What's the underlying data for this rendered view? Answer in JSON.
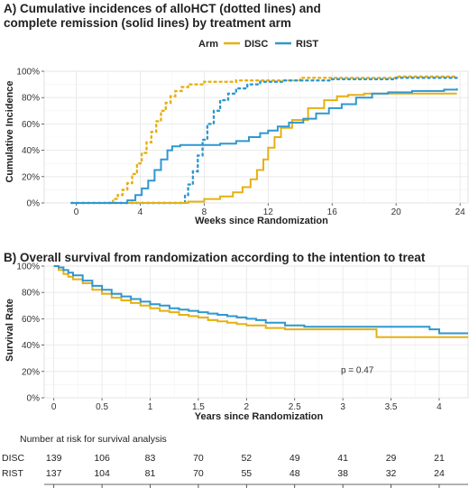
{
  "colors": {
    "DISC": "#E6B012",
    "RIST": "#2F97D0",
    "text": "#222222"
  },
  "chart_data": [
    {
      "type": "line",
      "title": "A) Cumulative incidences of alloHCT (dotted lines) and",
      "title_line2": "complete remission (solid lines) by treatment arm",
      "xlabel": "Weeks since Randomization",
      "ylabel": "Cumulative Incidence",
      "xlim": [
        -2,
        24.5
      ],
      "ylim": [
        0,
        100
      ],
      "xticks": [
        "0",
        "4",
        "8",
        "12",
        "16",
        "20",
        "24"
      ],
      "xtick_values": [
        0,
        4,
        8,
        12,
        16,
        20,
        24
      ],
      "yticks": [
        "0%",
        "20%",
        "40%",
        "60%",
        "80%",
        "100%"
      ],
      "ytick_values": [
        0,
        20,
        40,
        60,
        80,
        100
      ],
      "legend": {
        "title": "Arm",
        "entries": [
          "DISC",
          "RIST"
        ],
        "position": "top"
      },
      "grid": true,
      "series": [
        {
          "name": "DISC",
          "style": "dotted",
          "measure": "alloHCT",
          "points": [
            [
              2,
              0
            ],
            [
              2.3,
              3
            ],
            [
              2.6,
              6
            ],
            [
              2.9,
              10
            ],
            [
              3.2,
              15
            ],
            [
              3.5,
              22
            ],
            [
              3.8,
              30
            ],
            [
              4.1,
              38
            ],
            [
              4.4,
              46
            ],
            [
              4.7,
              54
            ],
            [
              5.0,
              62
            ],
            [
              5.3,
              70
            ],
            [
              5.6,
              76
            ],
            [
              5.9,
              81
            ],
            [
              6.2,
              85
            ],
            [
              6.6,
              88
            ],
            [
              7.0,
              90
            ],
            [
              8,
              92
            ],
            [
              10,
              93
            ],
            [
              14,
              95
            ],
            [
              20,
              96
            ],
            [
              23.8,
              96
            ]
          ]
        },
        {
          "name": "RIST",
          "style": "dotted",
          "measure": "alloHCT",
          "points": [
            [
              -0.3,
              0
            ],
            [
              6.5,
              0
            ],
            [
              6.8,
              6
            ],
            [
              7.0,
              14
            ],
            [
              7.3,
              24
            ],
            [
              7.6,
              36
            ],
            [
              7.9,
              48
            ],
            [
              8.2,
              60
            ],
            [
              8.6,
              70
            ],
            [
              9.0,
              78
            ],
            [
              9.5,
              83
            ],
            [
              10,
              87
            ],
            [
              10.7,
              90
            ],
            [
              11.5,
              92
            ],
            [
              13,
              93
            ],
            [
              16,
              94
            ],
            [
              20,
              95
            ],
            [
              23.8,
              95
            ]
          ]
        },
        {
          "name": "DISC",
          "style": "solid",
          "measure": "complete remission",
          "points": [
            [
              -0.3,
              0
            ],
            [
              5.5,
              0
            ],
            [
              7,
              1
            ],
            [
              8,
              3
            ],
            [
              9,
              5
            ],
            [
              9.8,
              8
            ],
            [
              10.4,
              12
            ],
            [
              10.9,
              18
            ],
            [
              11.3,
              25
            ],
            [
              11.7,
              33
            ],
            [
              12.0,
              42
            ],
            [
              12.4,
              50
            ],
            [
              12.8,
              57
            ],
            [
              13.5,
              63
            ],
            [
              14.5,
              72
            ],
            [
              15.5,
              78
            ],
            [
              16.3,
              81
            ],
            [
              17,
              82
            ],
            [
              18,
              83
            ],
            [
              23.8,
              83
            ]
          ]
        },
        {
          "name": "RIST",
          "style": "solid",
          "measure": "complete remission",
          "points": [
            [
              -0.3,
              0
            ],
            [
              2.5,
              0
            ],
            [
              3.2,
              2
            ],
            [
              3.7,
              6
            ],
            [
              4.1,
              11
            ],
            [
              4.5,
              17
            ],
            [
              4.9,
              25
            ],
            [
              5.3,
              33
            ],
            [
              5.7,
              40
            ],
            [
              6.0,
              43
            ],
            [
              6.5,
              44
            ],
            [
              8.0,
              44
            ],
            [
              9.0,
              45
            ],
            [
              10.0,
              47
            ],
            [
              10.8,
              50
            ],
            [
              11.5,
              53
            ],
            [
              12.0,
              55
            ],
            [
              12.6,
              58
            ],
            [
              13.3,
              61
            ],
            [
              14.2,
              64
            ],
            [
              15.0,
              68
            ],
            [
              15.8,
              72
            ],
            [
              16.6,
              75
            ],
            [
              17.5,
              80
            ],
            [
              18.5,
              83
            ],
            [
              19.5,
              84
            ],
            [
              21,
              85
            ],
            [
              23,
              86
            ],
            [
              23.8,
              87
            ]
          ]
        }
      ]
    },
    {
      "type": "line",
      "title": "B) Overall survival from randomization according to the intention to treat",
      "xlabel": "Years since Randomization",
      "ylabel": "Survival Rate",
      "xlim": [
        -0.1,
        4.3
      ],
      "ylim": [
        0,
        100
      ],
      "xticks": [
        "0",
        "0.5",
        "1",
        "1.5",
        "2",
        "2.5",
        "3",
        "3.5",
        "4"
      ],
      "xtick_values": [
        0,
        0.5,
        1,
        1.5,
        2,
        2.5,
        3,
        3.5,
        4
      ],
      "yticks": [
        "0%",
        "20%",
        "40%",
        "60%",
        "80%",
        "100%"
      ],
      "ytick_values": [
        0,
        20,
        40,
        60,
        80,
        100
      ],
      "grid": true,
      "annotation": "p = 0.47",
      "annotation_at": [
        3.15,
        19
      ],
      "series": [
        {
          "name": "DISC",
          "style": "solid",
          "points": [
            [
              0,
              100
            ],
            [
              0.05,
              97
            ],
            [
              0.1,
              94
            ],
            [
              0.15,
              92
            ],
            [
              0.2,
              90
            ],
            [
              0.3,
              87
            ],
            [
              0.4,
              82
            ],
            [
              0.5,
              79
            ],
            [
              0.6,
              76
            ],
            [
              0.7,
              74
            ],
            [
              0.8,
              72
            ],
            [
              0.9,
              70
            ],
            [
              1.0,
              68
            ],
            [
              1.1,
              66
            ],
            [
              1.2,
              65
            ],
            [
              1.3,
              63
            ],
            [
              1.4,
              62
            ],
            [
              1.5,
              61
            ],
            [
              1.6,
              59
            ],
            [
              1.7,
              58
            ],
            [
              1.8,
              57
            ],
            [
              1.9,
              56
            ],
            [
              2.0,
              55
            ],
            [
              2.2,
              53
            ],
            [
              2.4,
              52
            ],
            [
              3.0,
              52
            ],
            [
              3.33,
              52
            ],
            [
              3.35,
              46
            ],
            [
              4.3,
              46
            ]
          ]
        },
        {
          "name": "RIST",
          "style": "solid",
          "points": [
            [
              0,
              100
            ],
            [
              0.05,
              99
            ],
            [
              0.1,
              97
            ],
            [
              0.15,
              95
            ],
            [
              0.2,
              93
            ],
            [
              0.3,
              89
            ],
            [
              0.4,
              85
            ],
            [
              0.5,
              82
            ],
            [
              0.6,
              79
            ],
            [
              0.7,
              77
            ],
            [
              0.8,
              75
            ],
            [
              0.9,
              73
            ],
            [
              1.0,
              71
            ],
            [
              1.1,
              70
            ],
            [
              1.2,
              68
            ],
            [
              1.3,
              67
            ],
            [
              1.4,
              66
            ],
            [
              1.5,
              65
            ],
            [
              1.6,
              64
            ],
            [
              1.7,
              63
            ],
            [
              1.8,
              62
            ],
            [
              1.9,
              61
            ],
            [
              2.0,
              60
            ],
            [
              2.1,
              59
            ],
            [
              2.2,
              57
            ],
            [
              2.4,
              55
            ],
            [
              2.6,
              54
            ],
            [
              3.0,
              54
            ],
            [
              3.5,
              54
            ],
            [
              3.9,
              52
            ],
            [
              4.0,
              49
            ],
            [
              4.3,
              49
            ]
          ]
        }
      ]
    },
    {
      "type": "table",
      "title": "Number at risk for survival analysis",
      "rows": [
        {
          "label": "DISC",
          "values": [
            "139",
            "106",
            "83",
            "70",
            "52",
            "49",
            "41",
            "29",
            "21"
          ]
        },
        {
          "label": "RIST",
          "values": [
            "137",
            "104",
            "81",
            "70",
            "55",
            "48",
            "38",
            "32",
            "24"
          ]
        }
      ]
    }
  ]
}
